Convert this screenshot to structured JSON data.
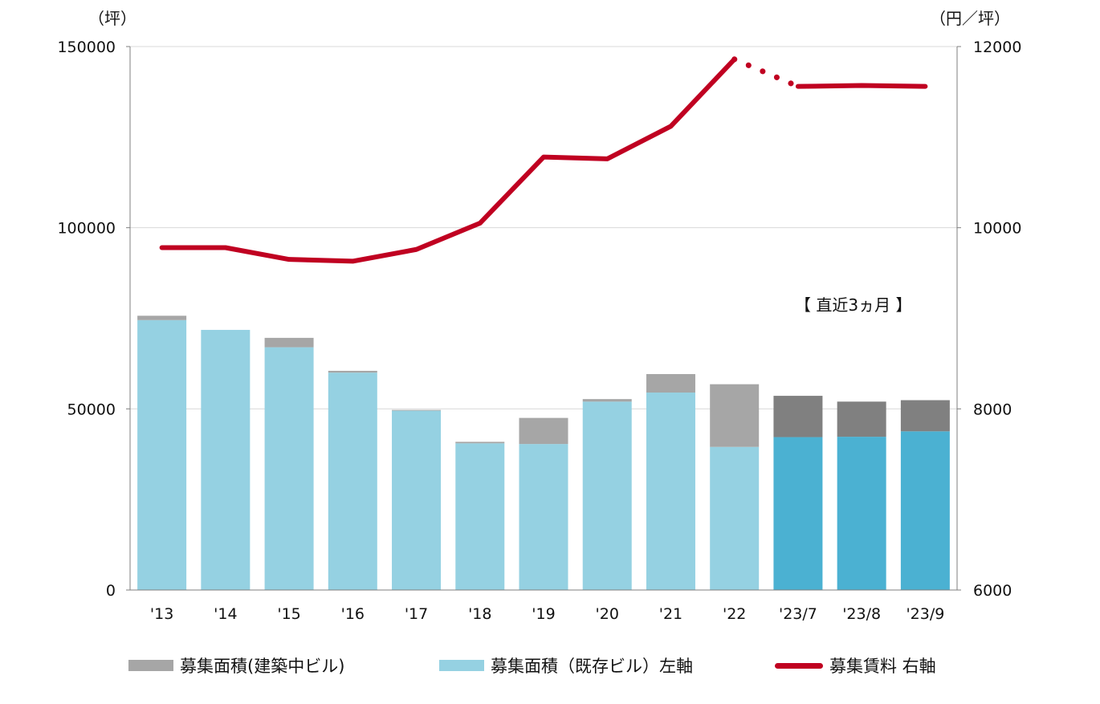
{
  "chart_data": {
    "type": "bar",
    "stacked": true,
    "categories": [
      "'13",
      "'14",
      "'15",
      "'16",
      "'17",
      "'18",
      "'19",
      "'20",
      "'21",
      "'22",
      "'23/7",
      "'23/8",
      "'23/9"
    ],
    "y_left": {
      "unit": "（坪）",
      "ylim": [
        0,
        150000
      ],
      "ticks": [
        "0",
        "50000",
        "100000",
        "150000"
      ],
      "tick_values": [
        0,
        50000,
        100000,
        150000
      ]
    },
    "y_right": {
      "unit": "（円／坪）",
      "ylim": [
        6000,
        12000
      ],
      "ticks": [
        "6000",
        "8000",
        "10000",
        "12000"
      ],
      "tick_values": [
        6000,
        8000,
        10000,
        12000
      ]
    },
    "grid": true,
    "legend_position": "bottom",
    "series": [
      {
        "name": "募集面積（既存ビル）左軸",
        "type": "bar",
        "axis": "left",
        "values": [
          74500,
          71800,
          67000,
          60000,
          49500,
          40500,
          40300,
          52000,
          54500,
          39500,
          42200,
          42300,
          43800
        ],
        "color": "#95D1E2",
        "highlight_color": "#4BB1D2",
        "highlight_from_index": 10
      },
      {
        "name": "募集面積(建築中ビル)",
        "type": "bar",
        "axis": "left",
        "values": [
          1200,
          0,
          2600,
          500,
          200,
          400,
          7200,
          700,
          5100,
          17300,
          11400,
          9700,
          8600
        ],
        "color": "#A6A6A6",
        "highlight_color": "#808080",
        "highlight_from_index": 10
      },
      {
        "name": "募集賃料 右軸",
        "type": "line",
        "axis": "right",
        "values": [
          9780,
          9780,
          9650,
          9630,
          9760,
          10050,
          10780,
          10760,
          11120,
          11860,
          11560,
          11570,
          11560
        ],
        "color": "#C00021",
        "dotted_between": [
          9,
          10
        ]
      }
    ],
    "annotations": [
      {
        "text": "【 直近3ヵ月 】",
        "near": "above 23/7–23/9 bars"
      }
    ]
  },
  "legend": [
    {
      "label": "募集面積(建築中ビル)",
      "icon": "bar-swatch",
      "color": "#A6A6A6"
    },
    {
      "label": "募集面積（既存ビル）左軸",
      "icon": "bar-swatch",
      "color": "#95D1E2"
    },
    {
      "label": "募集賃料 右軸",
      "icon": "line-swatch",
      "color": "#C00021"
    }
  ]
}
